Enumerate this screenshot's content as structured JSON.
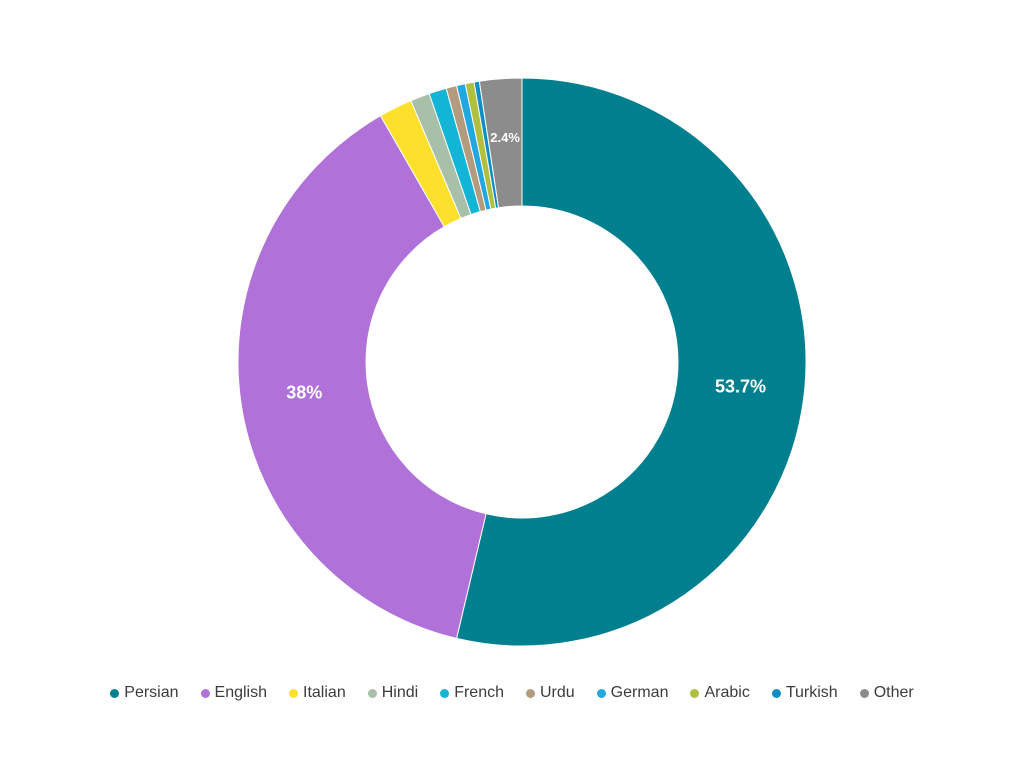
{
  "chart_data": {
    "type": "pie",
    "style": "donut",
    "slices": [
      {
        "label": "Persian",
        "value": 53.7,
        "display": "53.7%",
        "color": "#00808f"
      },
      {
        "label": "English",
        "value": 38.0,
        "display": "38%",
        "color": "#b071d9"
      },
      {
        "label": "Italian",
        "value": 1.9,
        "display": "",
        "color": "#fce02c"
      },
      {
        "label": "Hindi",
        "value": 1.1,
        "display": "",
        "color": "#a8bfa8"
      },
      {
        "label": "French",
        "value": 1.0,
        "display": "",
        "color": "#12b5d6"
      },
      {
        "label": "Urdu",
        "value": 0.6,
        "display": "",
        "color": "#b39c7d"
      },
      {
        "label": "German",
        "value": 0.5,
        "display": "",
        "color": "#21a8e0"
      },
      {
        "label": "Arabic",
        "value": 0.5,
        "display": "",
        "color": "#b0bf3e"
      },
      {
        "label": "Turkish",
        "value": 0.3,
        "display": "",
        "color": "#0e8fc4"
      },
      {
        "label": "Other",
        "value": 2.4,
        "display": "2.4%",
        "color": "#8c8c8c"
      }
    ],
    "legend_position": "bottom"
  }
}
